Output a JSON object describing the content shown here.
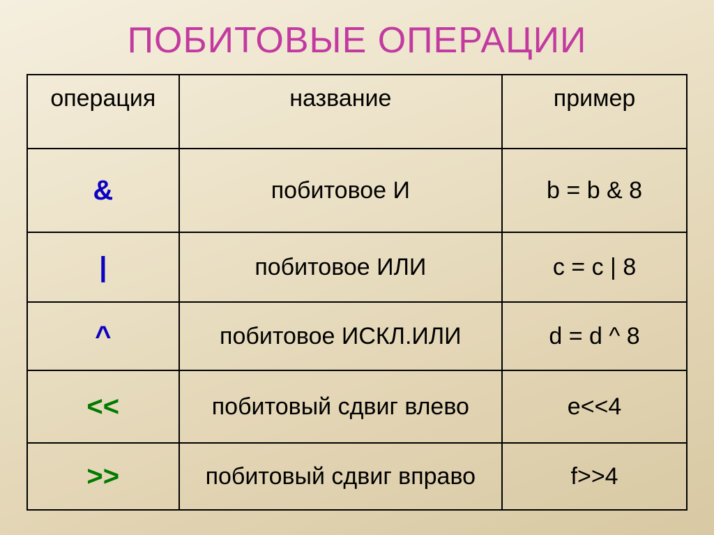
{
  "title": {
    "text": "ПОБИТОВЫЕ ОПЕРАЦИИ",
    "color": "#c23aa0"
  },
  "headers": {
    "op": "операция",
    "name": "название",
    "example": "пример"
  },
  "op_colors": {
    "blue": "#0b02c2",
    "green": "#007a00"
  },
  "rows": [
    {
      "key": "and",
      "op": "&",
      "op_color": "#0b02c2",
      "name": "побитовое И",
      "example": "b = b & 8"
    },
    {
      "key": "or",
      "op": "|",
      "op_color": "#0b02c2",
      "name": "побитовое ИЛИ",
      "example": "c = c | 8"
    },
    {
      "key": "xor",
      "op": "^",
      "op_color": "#0b02c2",
      "name": "побитовое ИСКЛ.ИЛИ",
      "example": "d = d ^ 8"
    },
    {
      "key": "shl",
      "op": "<<",
      "op_color": "#007a00",
      "name": "побитовый сдвиг влево",
      "example": "e<<4"
    },
    {
      "key": "shr",
      "op": ">>",
      "op_color": "#007a00",
      "name": "побитовый сдвиг вправо",
      "example": "f>>4"
    }
  ]
}
